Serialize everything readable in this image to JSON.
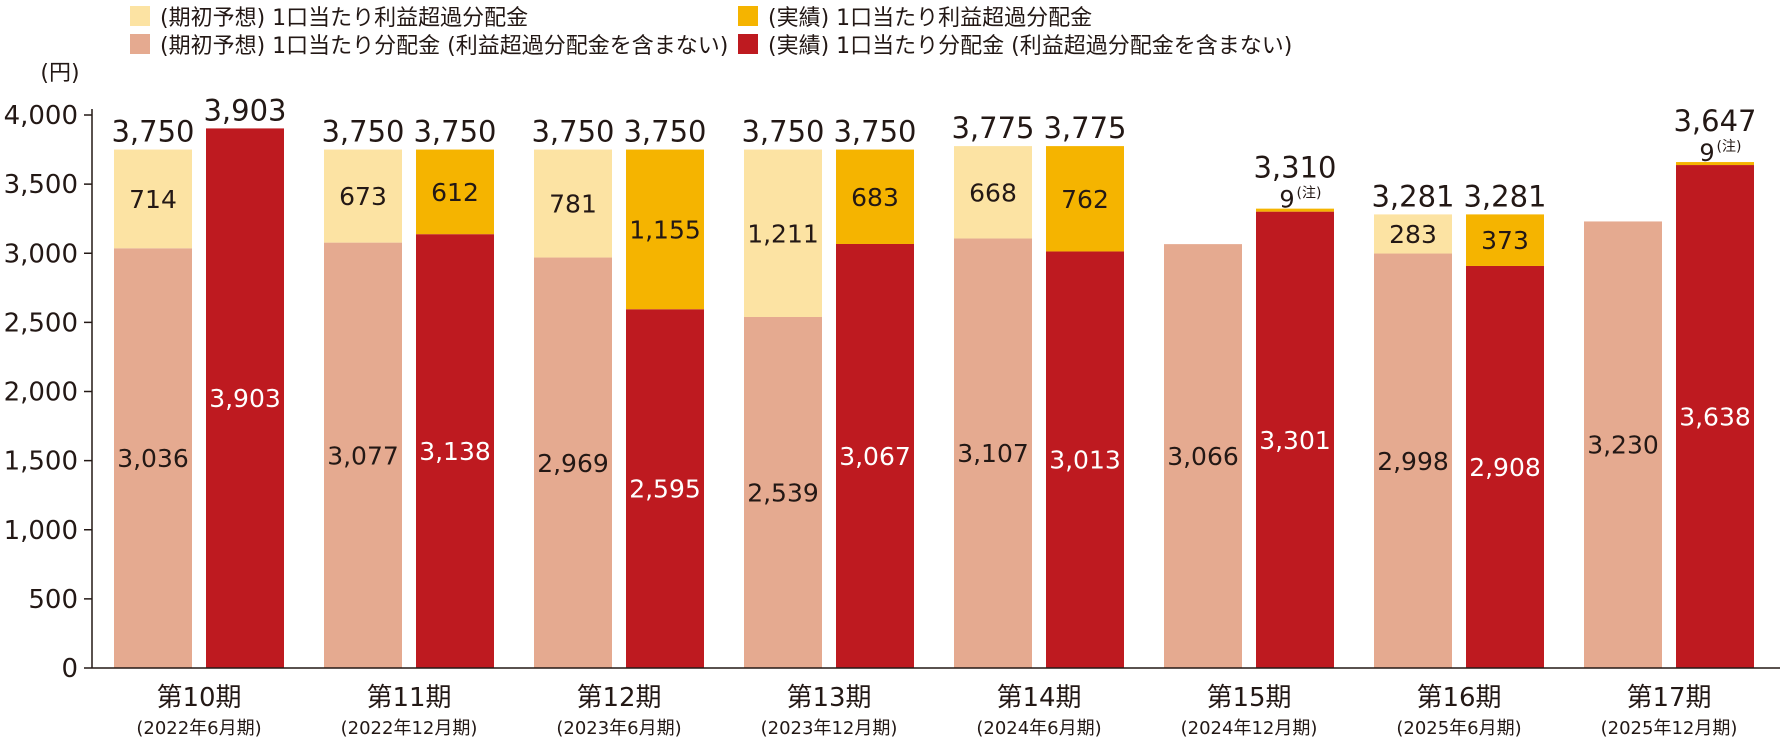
{
  "chart_data": {
    "type": "bar",
    "stacked": true,
    "ylabel": "(円)",
    "ylim": [
      0,
      4000
    ],
    "yticks": [
      "0",
      "500",
      "1,000",
      "1,500",
      "2,000",
      "2,500",
      "3,000",
      "3,500",
      "4,000"
    ],
    "grid": false,
    "legend": {
      "placement": "top",
      "items": [
        {
          "key": "fc_excess",
          "label": "(期初予想) 1口当たり利益超過分配金",
          "color": "#FCE3A3"
        },
        {
          "key": "ac_excess",
          "label": "(実績) 1口当たり利益超過分配金",
          "color": "#F5B400"
        },
        {
          "key": "fc_base",
          "label": "(期初予想) 1口当たり分配金 (利益超過分配金を含まない)",
          "color": "#E5AA90"
        },
        {
          "key": "ac_base",
          "label": "(実績) 1口当たり分配金 (利益超過分配金を含まない)",
          "color": "#BE1A20"
        }
      ]
    },
    "periods": [
      {
        "label": "第10期",
        "sublabel": "(2022年6月期)",
        "forecast": {
          "base": 3036,
          "base_label": "3,036",
          "excess": 714,
          "excess_label": "714",
          "total": 3750,
          "total_label": "3,750"
        },
        "actual": {
          "base": 3903,
          "base_label": "3,903",
          "excess": 0,
          "excess_label": "",
          "total": 3903,
          "total_label": "3,903"
        }
      },
      {
        "label": "第11期",
        "sublabel": "(2022年12月期)",
        "forecast": {
          "base": 3077,
          "base_label": "3,077",
          "excess": 673,
          "excess_label": "673",
          "total": 3750,
          "total_label": "3,750"
        },
        "actual": {
          "base": 3138,
          "base_label": "3,138",
          "excess": 612,
          "excess_label": "612",
          "total": 3750,
          "total_label": "3,750"
        }
      },
      {
        "label": "第12期",
        "sublabel": "(2023年6月期)",
        "forecast": {
          "base": 2969,
          "base_label": "2,969",
          "excess": 781,
          "excess_label": "781",
          "total": 3750,
          "total_label": "3,750"
        },
        "actual": {
          "base": 2595,
          "base_label": "2,595",
          "excess": 1155,
          "excess_label": "1,155",
          "total": 3750,
          "total_label": "3,750"
        }
      },
      {
        "label": "第13期",
        "sublabel": "(2023年12月期)",
        "forecast": {
          "base": 2539,
          "base_label": "2,539",
          "excess": 1211,
          "excess_label": "1,211",
          "total": 3750,
          "total_label": "3,750"
        },
        "actual": {
          "base": 3067,
          "base_label": "3,067",
          "excess": 683,
          "excess_label": "683",
          "total": 3750,
          "total_label": "3,750"
        }
      },
      {
        "label": "第14期",
        "sublabel": "(2024年6月期)",
        "forecast": {
          "base": 3107,
          "base_label": "3,107",
          "excess": 668,
          "excess_label": "668",
          "total": 3775,
          "total_label": "3,775"
        },
        "actual": {
          "base": 3013,
          "base_label": "3,013",
          "excess": 762,
          "excess_label": "762",
          "total": 3775,
          "total_label": "3,775"
        }
      },
      {
        "label": "第15期",
        "sublabel": "(2024年12月期)",
        "forecast": {
          "base": 3066,
          "base_label": "3,066",
          "excess": 0,
          "excess_label": "",
          "total": 3066,
          "total_label": ""
        },
        "actual": {
          "base": 3301,
          "base_label": "3,301",
          "excess": 9,
          "excess_label": "9",
          "excess_note": "(注)",
          "total": 3310,
          "total_label": "3,310"
        }
      },
      {
        "label": "第16期",
        "sublabel": "(2025年6月期)",
        "forecast": {
          "base": 2998,
          "base_label": "2,998",
          "excess": 283,
          "excess_label": "283",
          "total": 3281,
          "total_label": "3,281"
        },
        "actual": {
          "base": 2908,
          "base_label": "2,908",
          "excess": 373,
          "excess_label": "373",
          "total": 3281,
          "total_label": "3,281"
        }
      },
      {
        "label": "第17期",
        "sublabel": "(2025年12月期)",
        "forecast": {
          "base": 3230,
          "base_label": "3,230",
          "excess": 0,
          "excess_label": "",
          "total": 3230,
          "total_label": ""
        },
        "actual": {
          "base": 3638,
          "base_label": "3,638",
          "excess": 9,
          "excess_label": "9",
          "excess_note": "(注)",
          "total": 3647,
          "total_label": "3,647"
        }
      }
    ]
  }
}
